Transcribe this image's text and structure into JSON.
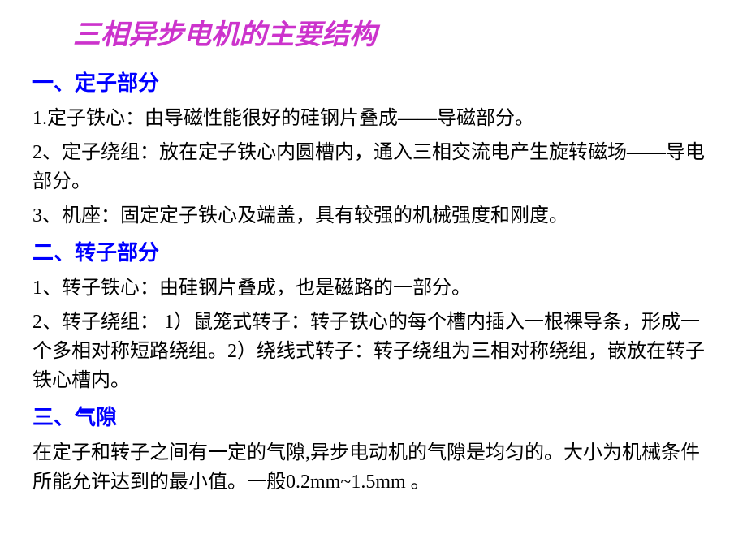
{
  "title": {
    "text": "三相异步电机的主要结构",
    "color": "#cc33cc",
    "fontsize": 34
  },
  "sections": [
    {
      "head": {
        "text": "一、定子部分",
        "color": "#0000ff",
        "fontsize": 26
      },
      "items": [
        {
          "text": "1.定子铁心：由导磁性能很好的硅钢片叠成——导磁部分。",
          "color": "#000000",
          "fontsize": 24
        },
        {
          "text": "2、定子绕组：放在定子铁心内圆槽内，通入三相交流电产生旋转磁场——导电部分。",
          "color": "#000000",
          "fontsize": 24
        },
        {
          "text": "3、机座：固定定子铁心及端盖，具有较强的机械强度和刚度。",
          "color": "#000000",
          "fontsize": 24
        }
      ]
    },
    {
      "head": {
        "text": "二、转子部分",
        "color": "#0000ff",
        "fontsize": 26
      },
      "items": [
        {
          "text": "1、转子铁心：由硅钢片叠成，也是磁路的一部分。",
          "color": "#000000",
          "fontsize": 24
        },
        {
          "text": "2、转子绕组： 1）鼠笼式转子：转子铁心的每个槽内插入一根裸导条，形成一个多相对称短路绕组。2）绕线式转子：转子绕组为三相对称绕组，嵌放在转子铁心槽内。",
          "color": "#000000",
          "fontsize": 24
        }
      ]
    },
    {
      "head": {
        "text": "三、气隙",
        "color": "#0000ff",
        "fontsize": 26
      },
      "items": [
        {
          "text": "在定子和转子之间有一定的气隙,异步电动机的气隙是均匀的。大小为机械条件所能允许达到的最小值。一般0.2mm~1.5mm 。",
          "color": "#000000",
          "fontsize": 24
        }
      ]
    }
  ]
}
